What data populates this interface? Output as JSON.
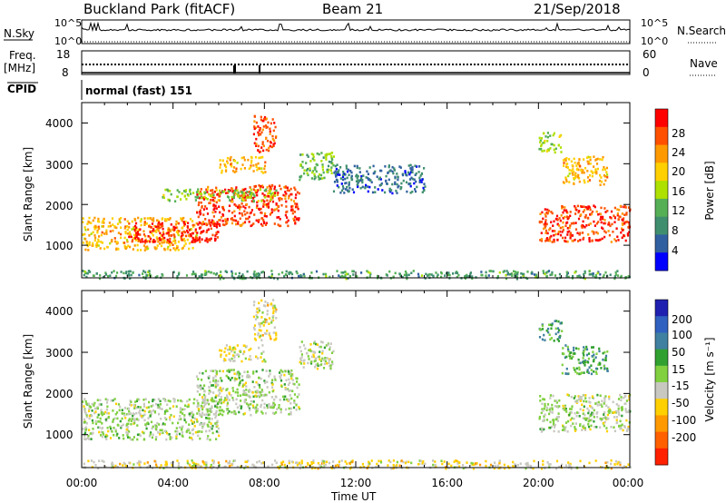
{
  "header": {
    "station": "Buckland Park (fitACF)",
    "beam": "Beam 21",
    "date": "21/Sep/2018"
  },
  "time_axis": {
    "label": "Time UT",
    "ticks": [
      "00:00",
      "04:00",
      "08:00",
      "12:00",
      "16:00",
      "20:00",
      "00:00"
    ]
  },
  "sky_panel": {
    "left_label": "N.Sky",
    "right_label": "N.Search",
    "left_ticks": [
      "10^5",
      "10^0"
    ],
    "right_ticks": [
      "10^5",
      "10^0"
    ]
  },
  "freq_panel": {
    "left_label_line1": "Freq.",
    "left_label_line2": "[MHz]",
    "right_label": "Nave",
    "left_ticks": [
      "18",
      "8"
    ],
    "right_ticks": [
      "60",
      "0"
    ]
  },
  "cpid_panel": {
    "label": "CPID",
    "value": "normal (fast) 151"
  },
  "power_panel": {
    "ylabel": "Slant Range [km]",
    "yticks": [
      "4000",
      "3000",
      "2000",
      "1000"
    ],
    "colorbar_label": "Power [dB]",
    "colorbar_ticks": [
      "28",
      "24",
      "20",
      "16",
      "12",
      "8",
      "4"
    ],
    "colorbar_colors": [
      "#ff0000",
      "#ff5000",
      "#ff9900",
      "#ffd000",
      "#aee000",
      "#55b055",
      "#3f8f6f",
      "#3060a0",
      "#0000ff"
    ]
  },
  "velocity_panel": {
    "ylabel": "Slant Range [km]",
    "yticks": [
      "4000",
      "3000",
      "2000",
      "1000"
    ],
    "colorbar_label": "Velocity [m s⁻¹]",
    "colorbar_ticks": [
      "200",
      "100",
      "50",
      "15",
      "-15",
      "-50",
      "-100",
      "-200"
    ],
    "colorbar_colors": [
      "#2020b0",
      "#3060c0",
      "#4080a0",
      "#30a030",
      "#80d040",
      "#c8c8c0",
      "#ffd000",
      "#ff9900",
      "#ff6000",
      "#ff2000"
    ]
  },
  "chart_data": [
    {
      "type": "heatmap",
      "title": "Power [dB]",
      "xlabel": "Time UT",
      "ylabel": "Slant Range [km]",
      "xlim": [
        0,
        24
      ],
      "ylim": [
        200,
        4500
      ],
      "zlim": [
        0,
        30
      ],
      "regions": [
        {
          "t0": 0.0,
          "t1": 24.0,
          "r0": 200,
          "r1": 400,
          "level": 10
        },
        {
          "t0": 0.0,
          "t1": 5.0,
          "r0": 900,
          "r1": 1700,
          "level": 20
        },
        {
          "t0": 2.0,
          "t1": 6.0,
          "r0": 1100,
          "r1": 1600,
          "level": 28
        },
        {
          "t0": 5.0,
          "t1": 9.5,
          "r0": 1500,
          "r1": 2500,
          "level": 26
        },
        {
          "t0": 3.5,
          "t1": 8.5,
          "r0": 2100,
          "r1": 2400,
          "level": 14
        },
        {
          "t0": 6.0,
          "t1": 8.0,
          "r0": 2800,
          "r1": 3200,
          "level": 20
        },
        {
          "t0": 7.5,
          "t1": 8.5,
          "r0": 3300,
          "r1": 4200,
          "level": 26
        },
        {
          "t0": 9.5,
          "t1": 11.0,
          "r0": 2600,
          "r1": 3300,
          "level": 12
        },
        {
          "t0": 11.0,
          "t1": 15.0,
          "r0": 2300,
          "r1": 3000,
          "level": 6
        },
        {
          "t0": 20.0,
          "t1": 24.0,
          "r0": 1100,
          "r1": 2000,
          "level": 26
        },
        {
          "t0": 21.0,
          "t1": 23.0,
          "r0": 2500,
          "r1": 3200,
          "level": 20
        },
        {
          "t0": 20.0,
          "t1": 21.0,
          "r0": 3300,
          "r1": 3800,
          "level": 14
        }
      ]
    },
    {
      "type": "heatmap",
      "title": "Velocity [m s⁻¹]",
      "xlabel": "Time UT",
      "ylabel": "Slant Range [km]",
      "xlim": [
        0,
        24
      ],
      "ylim": [
        200,
        4500
      ],
      "zlim": [
        -200,
        200
      ],
      "regions": [
        {
          "t0": 0.0,
          "t1": 24.0,
          "r0": 200,
          "r1": 400,
          "level": -40
        },
        {
          "t0": 0.0,
          "t1": 6.0,
          "r0": 900,
          "r1": 1900,
          "level": 0
        },
        {
          "t0": 5.0,
          "t1": 9.5,
          "r0": 1500,
          "r1": 2600,
          "level": 0
        },
        {
          "t0": 6.0,
          "t1": 8.0,
          "r0": 2800,
          "r1": 3200,
          "level": -30
        },
        {
          "t0": 7.5,
          "t1": 8.5,
          "r0": 3300,
          "r1": 4300,
          "level": -40
        },
        {
          "t0": 9.5,
          "t1": 11.0,
          "r0": 2600,
          "r1": 3300,
          "level": 0
        },
        {
          "t0": 20.0,
          "t1": 24.0,
          "r0": 1100,
          "r1": 2000,
          "level": 0
        },
        {
          "t0": 21.0,
          "t1": 23.0,
          "r0": 2500,
          "r1": 3200,
          "level": 60
        },
        {
          "t0": 20.0,
          "t1": 21.0,
          "r0": 3300,
          "r1": 3800,
          "level": 70
        }
      ]
    }
  ]
}
